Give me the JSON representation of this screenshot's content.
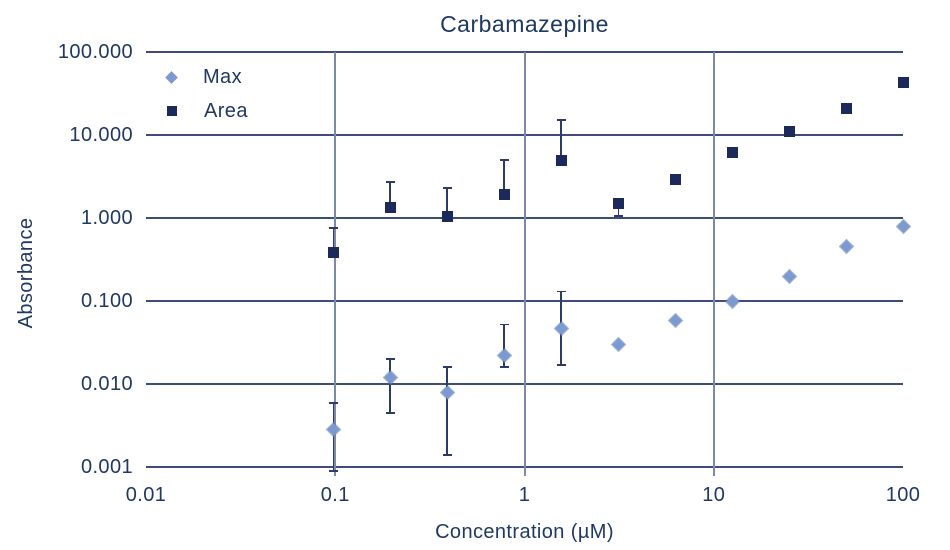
{
  "chart_data": {
    "type": "scatter",
    "title": "Carbamazepine",
    "xlabel": "Concentration (µM)",
    "ylabel": "Absorbance",
    "x_scale": "log",
    "y_scale": "log",
    "xlim": [
      0.01,
      100
    ],
    "ylim": [
      0.001,
      100
    ],
    "grid": {
      "horizontal": [
        100,
        10,
        1,
        0.1,
        0.01,
        0.001
      ],
      "vertical": [
        0.1,
        1,
        10
      ]
    },
    "x_ticks": {
      "values": [
        0.01,
        0.1,
        1,
        10,
        100
      ],
      "labels": [
        "0.01",
        "0.1",
        "1",
        "10",
        "100"
      ]
    },
    "y_ticks": {
      "values": [
        100,
        10,
        1,
        0.1,
        0.01,
        0.001
      ],
      "labels": [
        "100.000",
        "10.000",
        "1.000",
        "0.100",
        "0.010",
        "0.001"
      ]
    },
    "x": [
      0.098,
      0.195,
      0.39,
      0.78,
      1.56,
      3.13,
      6.25,
      12.5,
      25,
      50,
      100
    ],
    "series": [
      {
        "name": "Max",
        "marker": "diamond",
        "color": "#7d9ad0",
        "values": [
          0.0028,
          0.012,
          0.008,
          0.022,
          0.047,
          0.03,
          0.058,
          0.1,
          0.2,
          0.45,
          0.78
        ],
        "err_hi": [
          0.0059,
          0.02,
          0.016,
          0.052,
          0.13,
          null,
          null,
          null,
          null,
          null,
          null
        ],
        "err_lo": [
          0.0009,
          0.0045,
          0.0014,
          0.016,
          0.017,
          null,
          null,
          null,
          null,
          null,
          null
        ]
      },
      {
        "name": "Area",
        "marker": "square",
        "color": "#1b2a5a",
        "values": [
          0.38,
          1.35,
          1.05,
          1.9,
          4.9,
          1.5,
          2.9,
          6.2,
          11,
          21,
          43
        ],
        "err_hi": [
          0.75,
          2.7,
          2.3,
          5.0,
          15,
          null,
          null,
          null,
          null,
          null,
          null
        ],
        "err_lo": [
          0.34,
          null,
          null,
          null,
          null,
          1.05,
          null,
          null,
          null,
          null,
          null
        ]
      }
    ],
    "legend_position": "top-left"
  }
}
